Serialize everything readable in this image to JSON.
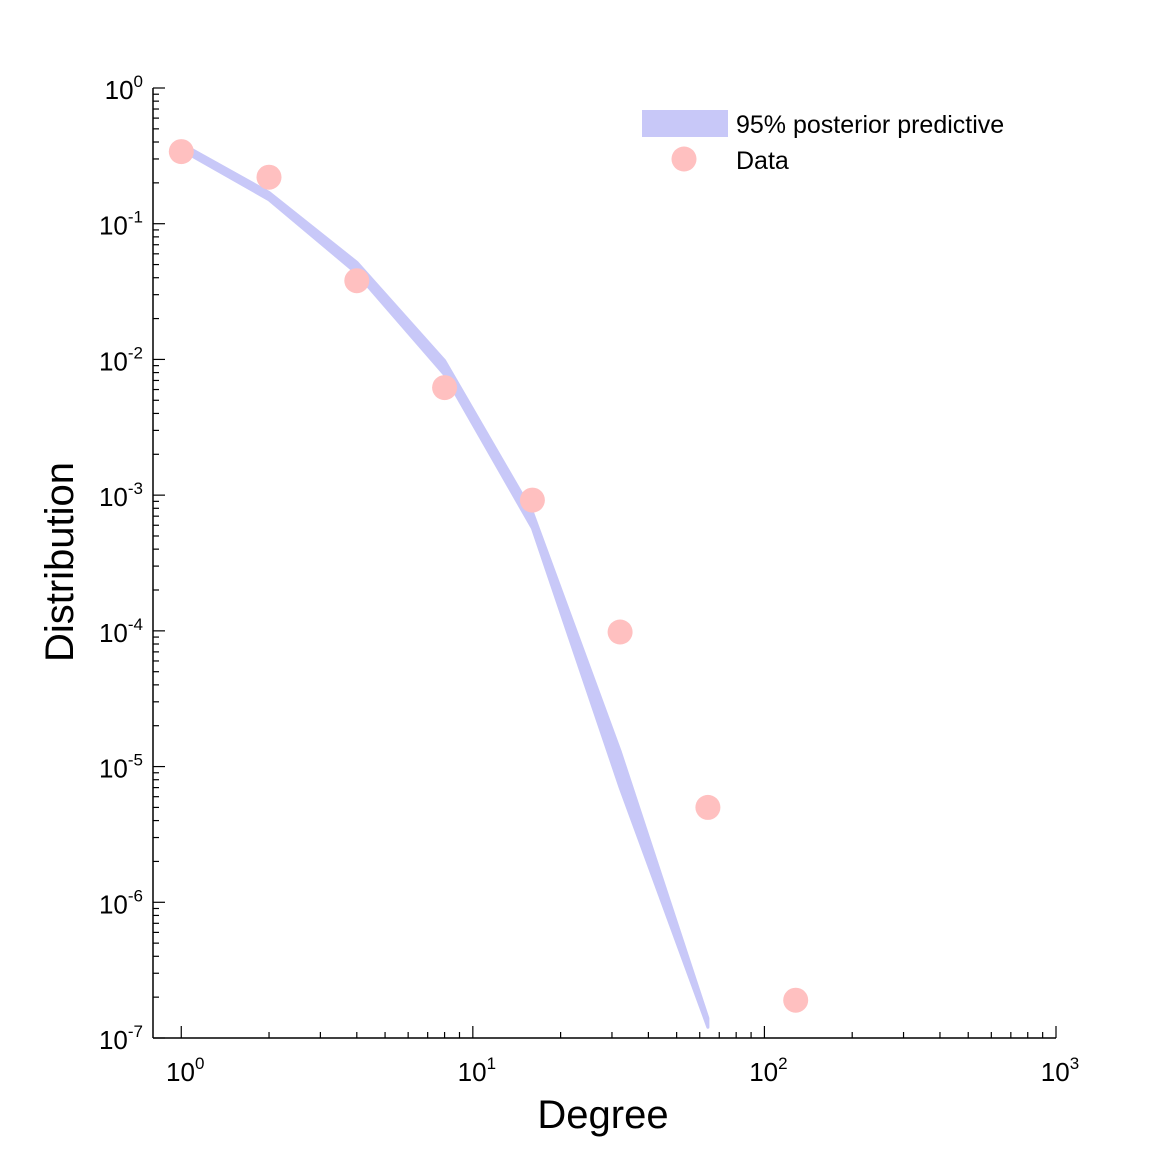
{
  "chart_data": {
    "type": "scatter",
    "xlabel": "Degree",
    "ylabel": "Distribution",
    "xscale": "log",
    "yscale": "log",
    "xlim": [
      0.8,
      1000
    ],
    "ylim": [
      1e-07,
      1
    ],
    "grid": false,
    "legend_position": "top-right",
    "x_ticks": [
      {
        "value": 1,
        "base": "10",
        "exp": "0"
      },
      {
        "value": 10,
        "base": "10",
        "exp": "1"
      },
      {
        "value": 100,
        "base": "10",
        "exp": "2"
      },
      {
        "value": 1000,
        "base": "10",
        "exp": "3"
      }
    ],
    "y_ticks": [
      {
        "value": 1,
        "base": "10",
        "exp": "0"
      },
      {
        "value": 0.1,
        "base": "10",
        "exp": "-1"
      },
      {
        "value": 0.01,
        "base": "10",
        "exp": "-2"
      },
      {
        "value": 0.001,
        "base": "10",
        "exp": "-3"
      },
      {
        "value": 0.0001,
        "base": "10",
        "exp": "-4"
      },
      {
        "value": 1e-05,
        "base": "10",
        "exp": "-5"
      },
      {
        "value": 1e-06,
        "base": "10",
        "exp": "-6"
      },
      {
        "value": 1e-07,
        "base": "10",
        "exp": "-7"
      }
    ],
    "series": [
      {
        "name": "95% posterior predictive",
        "kind": "band",
        "color": "#c8c8f8",
        "x": [
          1,
          2,
          4,
          8,
          16,
          32,
          64
        ],
        "upper": [
          0.39,
          0.17,
          0.052,
          0.0098,
          0.00075,
          1.3e-05,
          1.4e-07
        ],
        "lower": [
          0.35,
          0.15,
          0.043,
          0.0077,
          0.00057,
          7e-06,
          1.2e-07
        ]
      },
      {
        "name": "Data",
        "kind": "points",
        "color": "#ffc0c0",
        "x": [
          1,
          2,
          4,
          8,
          16,
          32,
          64,
          128
        ],
        "y": [
          0.34,
          0.22,
          0.038,
          0.0062,
          0.00092,
          9.8e-05,
          5e-06,
          1.9e-07
        ]
      }
    ]
  }
}
